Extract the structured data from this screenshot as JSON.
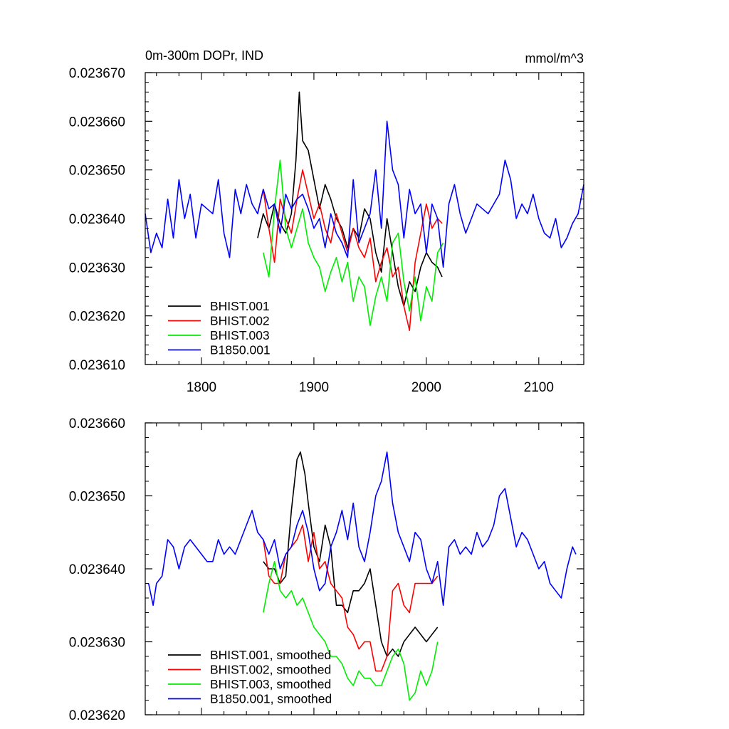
{
  "chart_data": [
    {
      "type": "line",
      "title": "0m-300m DOPr, IND",
      "units": "mmol/m^3",
      "xlim": [
        1750,
        2140
      ],
      "ylim": [
        0.02361,
        0.02367
      ],
      "xticks": [
        1800,
        1900,
        2000,
        2100
      ],
      "xtick_labels": [
        "1800",
        "1900",
        "2000",
        "2100"
      ],
      "yticks": [
        0.02361,
        0.02362,
        0.02363,
        0.02364,
        0.02365,
        0.02366,
        0.02367
      ],
      "ytick_labels": [
        "0.023610",
        "0.023620",
        "0.023630",
        "0.023640",
        "0.023650",
        "0.023660",
        "0.023670"
      ],
      "legend_position": "lower-left",
      "series": [
        {
          "name": "BHIST.001",
          "color": "#000000",
          "x": [
            1850,
            1855,
            1860,
            1865,
            1870,
            1875,
            1880,
            1884,
            1887,
            1890,
            1895,
            1900,
            1905,
            1910,
            1915,
            1920,
            1925,
            1930,
            1935,
            1940,
            1945,
            1950,
            1955,
            1960,
            1965,
            1970,
            1975,
            1980,
            1985,
            1990,
            1995,
            2000,
            2005,
            2010,
            2014
          ],
          "y": [
            0.023636,
            0.023641,
            0.023638,
            0.023643,
            0.023639,
            0.023637,
            0.023641,
            0.023652,
            0.023666,
            0.023656,
            0.023654,
            0.023648,
            0.023642,
            0.023647,
            0.023644,
            0.02364,
            0.023638,
            0.023634,
            0.023638,
            0.023636,
            0.023642,
            0.02364,
            0.023633,
            0.023629,
            0.02364,
            0.023633,
            0.023626,
            0.023622,
            0.023627,
            0.023625,
            0.02363,
            0.023633,
            0.023631,
            0.02363,
            0.023628
          ]
        },
        {
          "name": "BHIST.002",
          "color": "#ff0000",
          "x": [
            1850,
            1855,
            1860,
            1865,
            1870,
            1875,
            1880,
            1885,
            1890,
            1895,
            1900,
            1905,
            1910,
            1915,
            1920,
            1925,
            1930,
            1935,
            1940,
            1945,
            1950,
            1955,
            1960,
            1965,
            1970,
            1975,
            1980,
            1985,
            1990,
            1995,
            2000,
            2005,
            2010,
            2014
          ],
          "y": [
            0.023641,
            0.023646,
            0.023638,
            0.023631,
            0.023644,
            0.02364,
            0.023637,
            0.023644,
            0.02365,
            0.023645,
            0.02364,
            0.023643,
            0.023638,
            0.023635,
            0.023641,
            0.023637,
            0.023633,
            0.023638,
            0.023634,
            0.023632,
            0.023636,
            0.023627,
            0.023631,
            0.023634,
            0.023628,
            0.02363,
            0.023622,
            0.023617,
            0.023631,
            0.023637,
            0.023643,
            0.023638,
            0.02364,
            0.023639
          ]
        },
        {
          "name": "BHIST.003",
          "color": "#00ee00",
          "x": [
            1855,
            1860,
            1865,
            1870,
            1875,
            1880,
            1885,
            1890,
            1895,
            1900,
            1905,
            1910,
            1915,
            1920,
            1925,
            1930,
            1935,
            1940,
            1945,
            1950,
            1955,
            1960,
            1965,
            1970,
            1975,
            1980,
            1985,
            1990,
            1995,
            2000,
            2005,
            2010,
            2015
          ],
          "y": [
            0.023633,
            0.023628,
            0.023642,
            0.023652,
            0.023638,
            0.023634,
            0.023638,
            0.023642,
            0.023635,
            0.023632,
            0.02363,
            0.023625,
            0.023629,
            0.023632,
            0.023627,
            0.023631,
            0.023623,
            0.023628,
            0.023626,
            0.023618,
            0.023624,
            0.023628,
            0.023623,
            0.023635,
            0.023637,
            0.023627,
            0.023621,
            0.023628,
            0.023619,
            0.023626,
            0.023623,
            0.023633,
            0.023635
          ]
        },
        {
          "name": "B1850.001",
          "color": "#0000ff",
          "x": [
            1750,
            1755,
            1760,
            1765,
            1770,
            1775,
            1780,
            1785,
            1790,
            1795,
            1800,
            1805,
            1810,
            1815,
            1820,
            1825,
            1830,
            1835,
            1840,
            1845,
            1850,
            1855,
            1860,
            1865,
            1870,
            1875,
            1880,
            1885,
            1890,
            1895,
            1900,
            1905,
            1910,
            1915,
            1920,
            1925,
            1930,
            1935,
            1940,
            1945,
            1950,
            1955,
            1960,
            1965,
            1970,
            1975,
            1980,
            1985,
            1990,
            1995,
            2000,
            2005,
            2010,
            2015,
            2020,
            2025,
            2030,
            2035,
            2040,
            2045,
            2050,
            2055,
            2060,
            2065,
            2070,
            2075,
            2080,
            2085,
            2090,
            2095,
            2100,
            2105,
            2110,
            2115,
            2120,
            2125,
            2130,
            2135,
            2140
          ],
          "y": [
            0.023641,
            0.023633,
            0.023637,
            0.023634,
            0.023644,
            0.023636,
            0.023648,
            0.02364,
            0.023645,
            0.023636,
            0.023643,
            0.023642,
            0.023641,
            0.023648,
            0.023637,
            0.023632,
            0.023646,
            0.023641,
            0.023647,
            0.023643,
            0.023641,
            0.023646,
            0.023642,
            0.023643,
            0.023637,
            0.023645,
            0.023642,
            0.023644,
            0.023645,
            0.023642,
            0.023638,
            0.02364,
            0.023634,
            0.023641,
            0.023637,
            0.023635,
            0.023632,
            0.023648,
            0.023635,
            0.023638,
            0.023641,
            0.02365,
            0.023638,
            0.02366,
            0.02365,
            0.023647,
            0.023636,
            0.023646,
            0.023641,
            0.023643,
            0.023633,
            0.023643,
            0.02364,
            0.02363,
            0.023643,
            0.023647,
            0.023641,
            0.023637,
            0.02364,
            0.023643,
            0.023642,
            0.023641,
            0.023643,
            0.023645,
            0.023652,
            0.023648,
            0.02364,
            0.023643,
            0.023641,
            0.023645,
            0.02364,
            0.023637,
            0.023636,
            0.02364,
            0.023634,
            0.023636,
            0.023639,
            0.023641,
            0.023647
          ]
        }
      ]
    },
    {
      "type": "line",
      "title": "",
      "xlim": [
        1750,
        2140
      ],
      "ylim": [
        0.02362,
        0.02366
      ],
      "xticks": [
        1800,
        1900,
        2000,
        2100
      ],
      "yticks": [
        0.02362,
        0.02363,
        0.02364,
        0.02365,
        0.02366
      ],
      "ytick_labels": [
        "0.023620",
        "0.023630",
        "0.023640",
        "0.023650",
        "0.023660"
      ],
      "legend_position": "lower-left",
      "series": [
        {
          "name": "BHIST.001, smoothed",
          "color": "#000000",
          "x": [
            1855,
            1860,
            1865,
            1870,
            1875,
            1880,
            1885,
            1888,
            1892,
            1895,
            1900,
            1905,
            1910,
            1915,
            1920,
            1925,
            1930,
            1935,
            1940,
            1945,
            1950,
            1955,
            1960,
            1965,
            1970,
            1975,
            1980,
            1985,
            1990,
            1995,
            2000,
            2005,
            2010
          ],
          "y": [
            0.023641,
            0.02364,
            0.02364,
            0.023638,
            0.023639,
            0.023648,
            0.023655,
            0.023656,
            0.023653,
            0.023649,
            0.023643,
            0.023641,
            0.023646,
            0.023643,
            0.023635,
            0.023635,
            0.023634,
            0.023637,
            0.023637,
            0.023638,
            0.02364,
            0.023635,
            0.02363,
            0.023628,
            0.023629,
            0.023628,
            0.02363,
            0.023631,
            0.023632,
            0.023631,
            0.02363,
            0.023631,
            0.023632
          ]
        },
        {
          "name": "BHIST.002, smoothed",
          "color": "#ff0000",
          "x": [
            1855,
            1860,
            1865,
            1870,
            1875,
            1880,
            1885,
            1890,
            1895,
            1900,
            1905,
            1910,
            1915,
            1920,
            1925,
            1930,
            1935,
            1940,
            1945,
            1950,
            1955,
            1960,
            1965,
            1970,
            1975,
            1980,
            1985,
            1990,
            1995,
            2000,
            2005,
            2010
          ],
          "y": [
            0.023644,
            0.023639,
            0.023638,
            0.023638,
            0.023642,
            0.023643,
            0.023644,
            0.023646,
            0.023641,
            0.023645,
            0.02364,
            0.023641,
            0.023638,
            0.023637,
            0.023636,
            0.023632,
            0.023631,
            0.023629,
            0.02363,
            0.02363,
            0.023626,
            0.023626,
            0.023628,
            0.023637,
            0.023638,
            0.023635,
            0.023634,
            0.023638,
            0.023638,
            0.023638,
            0.023638,
            0.023639
          ]
        },
        {
          "name": "BHIST.003, smoothed",
          "color": "#00ee00",
          "x": [
            1855,
            1860,
            1865,
            1870,
            1875,
            1880,
            1885,
            1890,
            1895,
            1900,
            1905,
            1910,
            1915,
            1920,
            1925,
            1930,
            1935,
            1940,
            1945,
            1950,
            1955,
            1960,
            1965,
            1970,
            1975,
            1980,
            1985,
            1990,
            1995,
            2000,
            2005,
            2010
          ],
          "y": [
            0.023634,
            0.023638,
            0.023641,
            0.023637,
            0.023636,
            0.023637,
            0.023635,
            0.023636,
            0.023634,
            0.023632,
            0.023631,
            0.02363,
            0.023628,
            0.023628,
            0.023627,
            0.023625,
            0.023624,
            0.023626,
            0.023625,
            0.023625,
            0.023624,
            0.023624,
            0.023626,
            0.023628,
            0.023629,
            0.023627,
            0.023622,
            0.023623,
            0.023626,
            0.023624,
            0.023626,
            0.02363
          ]
        },
        {
          "name": "B1850.001, smoothed",
          "color": "#0000ff",
          "x": [
            1753,
            1757,
            1760,
            1765,
            1770,
            1775,
            1780,
            1785,
            1790,
            1795,
            1800,
            1805,
            1810,
            1815,
            1820,
            1825,
            1830,
            1835,
            1840,
            1845,
            1850,
            1855,
            1860,
            1865,
            1870,
            1875,
            1880,
            1885,
            1890,
            1895,
            1900,
            1905,
            1910,
            1915,
            1920,
            1925,
            1930,
            1935,
            1940,
            1945,
            1950,
            1955,
            1960,
            1965,
            1970,
            1975,
            1980,
            1985,
            1990,
            1995,
            2000,
            2005,
            2010,
            2015,
            2020,
            2025,
            2030,
            2035,
            2040,
            2045,
            2050,
            2055,
            2060,
            2065,
            2070,
            2075,
            2080,
            2085,
            2090,
            2095,
            2100,
            2105,
            2110,
            2115,
            2120,
            2125,
            2130,
            2133
          ],
          "y": [
            0.023638,
            0.023635,
            0.023638,
            0.023639,
            0.023644,
            0.023643,
            0.02364,
            0.023643,
            0.023644,
            0.023643,
            0.023642,
            0.023641,
            0.023641,
            0.023644,
            0.023642,
            0.023643,
            0.023642,
            0.023644,
            0.023646,
            0.023648,
            0.023645,
            0.023644,
            0.023642,
            0.023644,
            0.02364,
            0.023642,
            0.023643,
            0.023646,
            0.023648,
            0.023645,
            0.02364,
            0.023637,
            0.023638,
            0.023643,
            0.023645,
            0.023648,
            0.023644,
            0.023649,
            0.023643,
            0.023641,
            0.023645,
            0.02365,
            0.023652,
            0.023656,
            0.023649,
            0.023645,
            0.023643,
            0.023641,
            0.023645,
            0.023644,
            0.02364,
            0.023638,
            0.023641,
            0.023635,
            0.023643,
            0.023644,
            0.023642,
            0.023643,
            0.023642,
            0.023645,
            0.023643,
            0.023644,
            0.023646,
            0.02365,
            0.023651,
            0.023647,
            0.023643,
            0.023645,
            0.023644,
            0.023642,
            0.02364,
            0.023641,
            0.023638,
            0.023637,
            0.023636,
            0.02364,
            0.023643,
            0.023642
          ]
        }
      ]
    }
  ]
}
